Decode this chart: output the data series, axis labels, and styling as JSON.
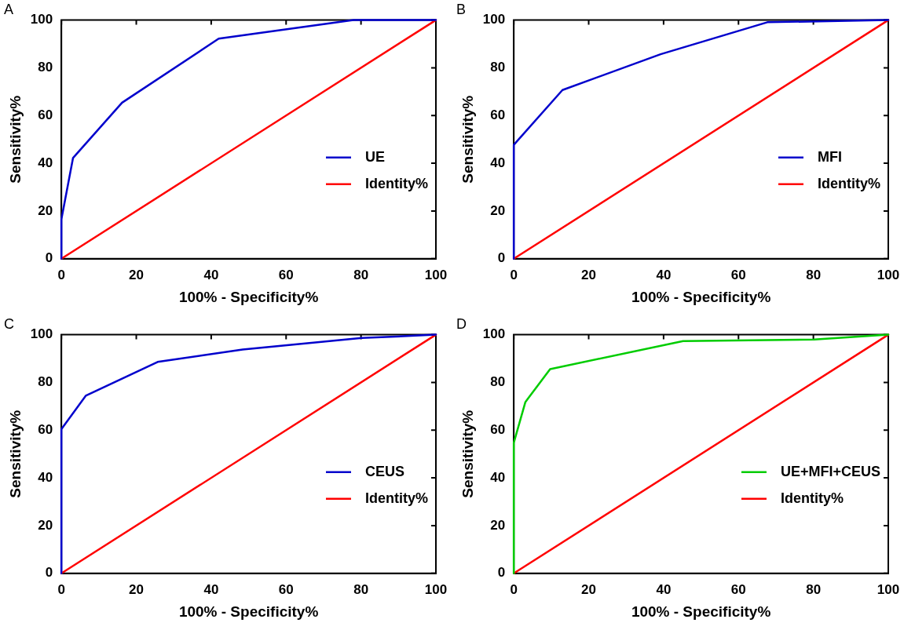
{
  "chart_data": [
    {
      "type": "line",
      "title": "A",
      "xlabel": "100% - Specificity%",
      "ylabel": "Sensitivity%",
      "xlim": [
        0,
        100
      ],
      "ylim": [
        0,
        100
      ],
      "xticks": [
        0,
        20,
        40,
        60,
        80,
        100
      ],
      "yticks": [
        0,
        20,
        40,
        60,
        80,
        100
      ],
      "grid": false,
      "legend": "right",
      "marker": "none",
      "line_style": "solid",
      "series": [
        {
          "name": "UE",
          "color": "#0000cc",
          "x": [
            0,
            0,
            3.1,
            16.2,
            42,
            78,
            100
          ],
          "values": [
            0,
            16.5,
            42.2,
            65.4,
            92.2,
            100,
            100
          ]
        },
        {
          "name": "Identity%",
          "color": "#ff0000",
          "x": [
            0,
            100
          ],
          "values": [
            0,
            100
          ]
        }
      ]
    },
    {
      "type": "line",
      "title": "B",
      "xlabel": "100% - Specificity%",
      "ylabel": "Sensitivity%",
      "xlim": [
        0,
        100
      ],
      "ylim": [
        0,
        100
      ],
      "xticks": [
        0,
        20,
        40,
        60,
        80,
        100
      ],
      "yticks": [
        0,
        20,
        40,
        60,
        80,
        100
      ],
      "grid": false,
      "legend": "right",
      "marker": "none",
      "line_style": "solid",
      "series": [
        {
          "name": "MFI",
          "color": "#0000cc",
          "x": [
            0,
            0,
            13,
            39.2,
            67.7,
            100
          ],
          "values": [
            0,
            47.7,
            70.7,
            85.7,
            99.1,
            100
          ]
        },
        {
          "name": "Identity%",
          "color": "#ff0000",
          "x": [
            0,
            100
          ],
          "values": [
            0,
            100
          ]
        }
      ]
    },
    {
      "type": "line",
      "title": "C",
      "xlabel": "100% - Specificity%",
      "ylabel": "Sensitivity%",
      "xlim": [
        0,
        100
      ],
      "ylim": [
        0,
        100
      ],
      "xticks": [
        0,
        20,
        40,
        60,
        80,
        100
      ],
      "yticks": [
        0,
        20,
        40,
        60,
        80,
        100
      ],
      "grid": false,
      "legend": "right",
      "marker": "none",
      "line_style": "solid",
      "series": [
        {
          "name": "CEUS",
          "color": "#0000cc",
          "x": [
            0,
            0,
            6.5,
            25.7,
            48.4,
            80.2,
            100
          ],
          "values": [
            0,
            60.4,
            74.4,
            88.6,
            93.8,
            98.6,
            100
          ]
        },
        {
          "name": "Identity%",
          "color": "#ff0000",
          "x": [
            0,
            100
          ],
          "values": [
            0,
            100
          ]
        }
      ]
    },
    {
      "type": "line",
      "title": "D",
      "xlabel": "100% - Specificity%",
      "ylabel": "Sensitivity%",
      "xlim": [
        0,
        100
      ],
      "ylim": [
        0,
        100
      ],
      "xticks": [
        0,
        20,
        40,
        60,
        80,
        100
      ],
      "yticks": [
        0,
        20,
        40,
        60,
        80,
        100
      ],
      "grid": false,
      "legend": "right",
      "marker": "none",
      "line_style": "solid",
      "series": [
        {
          "name": "UE+MFI+CEUS",
          "color": "#00cc00",
          "x": [
            0,
            0,
            3.1,
            9.7,
            45.2,
            80.2,
            100
          ],
          "values": [
            0,
            54.7,
            71.8,
            85.6,
            97.3,
            98,
            100
          ]
        },
        {
          "name": "Identity%",
          "color": "#ff0000",
          "x": [
            0,
            100
          ],
          "values": [
            0,
            100
          ]
        }
      ]
    }
  ]
}
